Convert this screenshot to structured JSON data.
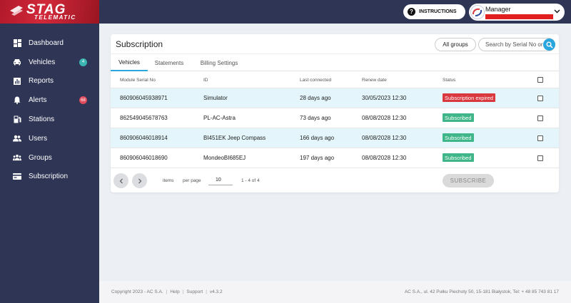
{
  "brand": {
    "name": "STAG",
    "tagline": "TELEMATIC"
  },
  "sidebar": {
    "items": [
      {
        "label": "Dashboard",
        "icon": "dashboard-icon"
      },
      {
        "label": "Vehicles",
        "icon": "car-icon",
        "badge": "4",
        "badge_color": "#3bb5b2"
      },
      {
        "label": "Reports",
        "icon": "chart-icon"
      },
      {
        "label": "Alerts",
        "icon": "bell-icon",
        "badge": "68",
        "badge_color": "#e04a5a"
      },
      {
        "label": "Stations",
        "icon": "gas-station-icon"
      },
      {
        "label": "Users",
        "icon": "users-icon"
      },
      {
        "label": "Groups",
        "icon": "groups-icon"
      },
      {
        "label": "Subscription",
        "icon": "card-icon"
      }
    ]
  },
  "topbar": {
    "instructions_label": "INSTRUCTIONS",
    "user_role": "Manager"
  },
  "card": {
    "title": "Subscription",
    "group_filter": "All groups",
    "search_placeholder": "Search by Serial No or ID",
    "tabs": [
      {
        "label": "Vehicles",
        "active": true
      },
      {
        "label": "Statements",
        "active": false
      },
      {
        "label": "Billing Settings",
        "active": false
      }
    ],
    "columns": {
      "serial": "Module Serial No",
      "id": "ID",
      "last": "Last connected",
      "renew": "Renew date",
      "status": "Status"
    },
    "rows": [
      {
        "serial": "860906045938971",
        "id": "Simulator",
        "last": "28 days ago",
        "renew": "30/05/2023 12:30",
        "status": "Subscription expired",
        "status_color": "#d9383f"
      },
      {
        "serial": "862549045678763",
        "id": "PL-AC-Astra",
        "last": "73 days ago",
        "renew": "08/08/2028 12:30",
        "status": "Subscribed",
        "status_color": "#3fb58a"
      },
      {
        "serial": "860906046018914",
        "id": "BI451EK Jeep Compass",
        "last": "166 days ago",
        "renew": "08/08/2028 12:30",
        "status": "Subscribed",
        "status_color": "#3fb58a"
      },
      {
        "serial": "860906046018690",
        "id": "MondeoBI685EJ",
        "last": "197 days ago",
        "renew": "08/08/2028 12:30",
        "status": "Subscribed",
        "status_color": "#3fb58a"
      }
    ],
    "pagination": {
      "items_label": "items",
      "per_page_label": "per page",
      "per_page_value": "10",
      "range": "1 - 4 of 4"
    },
    "subscribe_label": "SUBSCRIBE"
  },
  "footer": {
    "copyright": "Copyright 2023 - AC S.A.",
    "help": "Help",
    "support": "Support",
    "version": "v4.3.2",
    "address": "AC S.A., ul. 42 Pułku Piechoty 50, 15-181 Białystok, Tel: + 48 85 743 81 17"
  },
  "colors": {
    "sidebar_bg": "#2f3555",
    "accent": "#2aa6de",
    "brand_red": "#c8202e"
  }
}
